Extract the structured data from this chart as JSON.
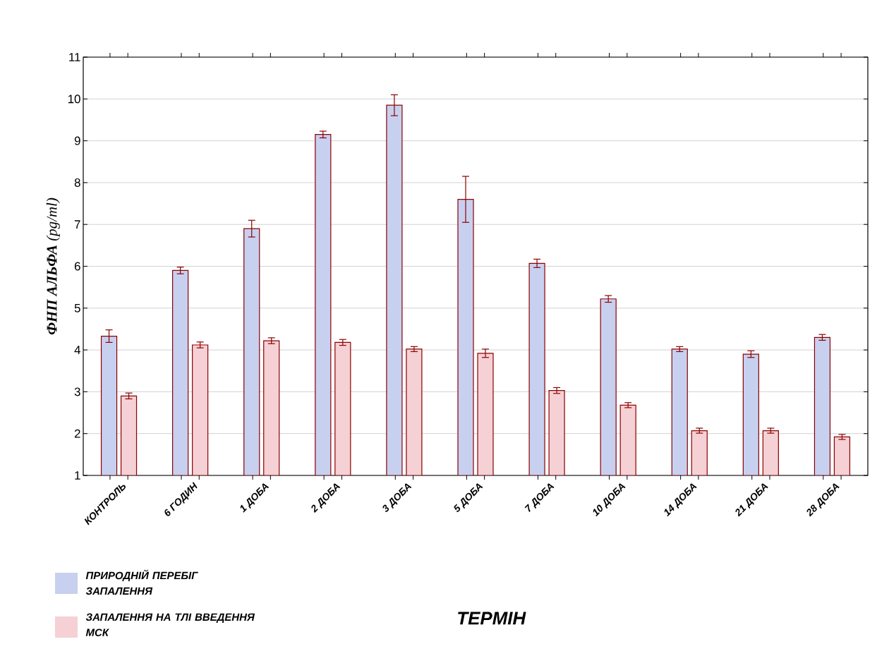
{
  "chart_data": {
    "type": "bar",
    "xlabel": "ТЕРМІН",
    "ylabel": "**ФНП АЛЬФА** (pg/ml)",
    "categories": [
      "КОНТРОЛЬ",
      "6 ГОДИН",
      "1 ДОБА",
      "2 ДОБА",
      "3 ДОБА",
      "5 ДОБА",
      "7 ДОБА",
      "10 ДОБА",
      "14 ДОБА",
      "21 ДОБА",
      "28 ДОБА"
    ],
    "series": [
      {
        "name": "ПРИРОДНІЙ ПЕРЕБІГ ЗАПАЛЕННЯ",
        "color": "#c8d0f0",
        "values": [
          4.33,
          5.9,
          6.9,
          9.15,
          9.85,
          7.6,
          6.07,
          5.22,
          4.02,
          3.9,
          4.3
        ],
        "errors": [
          0.15,
          0.08,
          0.2,
          0.08,
          0.25,
          0.55,
          0.1,
          0.08,
          0.06,
          0.08,
          0.07
        ]
      },
      {
        "name": "ЗАПАЛЕННЯ НА ТЛІ ВВЕДЕННЯ МСК",
        "color": "#f5d0d4",
        "values": [
          2.9,
          4.12,
          4.22,
          4.18,
          4.02,
          3.92,
          3.03,
          2.68,
          2.07,
          2.07,
          1.92
        ],
        "errors": [
          0.07,
          0.07,
          0.07,
          0.07,
          0.06,
          0.1,
          0.07,
          0.06,
          0.06,
          0.06,
          0.06
        ]
      }
    ],
    "ylim": [
      1,
      11
    ],
    "yticks": [
      1,
      2,
      3,
      4,
      5,
      6,
      7,
      8,
      9,
      10,
      11
    ],
    "grid": "y",
    "legend": "bottom left"
  }
}
